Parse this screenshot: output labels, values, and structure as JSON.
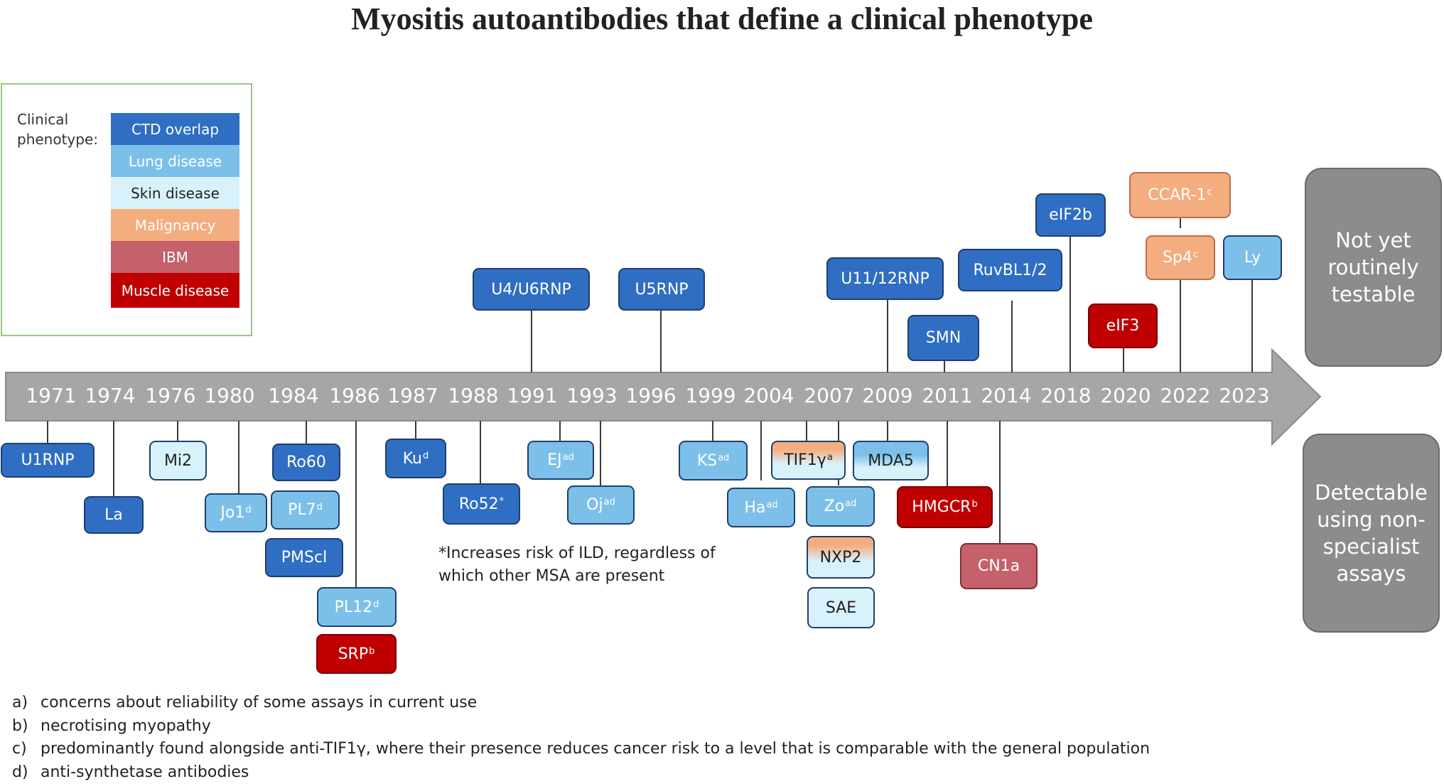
{
  "title": "Myositis autoantibodies that define a clinical phenotype",
  "legend": {
    "label": "Clinical phenotype:",
    "items": [
      {
        "label": "CTD overlap",
        "color": "#2f6ec3"
      },
      {
        "label": "Lung disease",
        "color": "#7cc0ea"
      },
      {
        "label": "Skin disease",
        "color": "#d8f2fb"
      },
      {
        "label": "Malignancy",
        "color": "#f4ad7e"
      },
      {
        "label": "IBM",
        "color": "#c4616b"
      },
      {
        "label": "Muscle disease",
        "color": "#c00000"
      }
    ]
  },
  "timeline": {
    "years": [
      "1971",
      "1974",
      "1976",
      "1980",
      "1984",
      "1986",
      "1987",
      "1988",
      "1991",
      "1993",
      "1996",
      "1999",
      "2004",
      "2007",
      "2009",
      "2011",
      "2014",
      "2018",
      "2020",
      "2022",
      "2023"
    ]
  },
  "antibodies": {
    "u1rnp": {
      "name": "U1RNP",
      "sup": "",
      "year": "1971",
      "phenotype": "CTD overlap"
    },
    "la": {
      "name": "La",
      "sup": "",
      "year": "1974",
      "phenotype": "CTD overlap"
    },
    "mi2": {
      "name": "Mi2",
      "sup": "",
      "year": "1976",
      "phenotype": "Skin disease"
    },
    "jo1": {
      "name": "Jo1",
      "sup": "d",
      "year": "1980",
      "phenotype": "Lung disease"
    },
    "ro60": {
      "name": "Ro60",
      "sup": "",
      "year": "1984",
      "phenotype": "CTD overlap"
    },
    "pl7": {
      "name": "PL7",
      "sup": "d",
      "year": "1984",
      "phenotype": "Lung disease"
    },
    "pmscl": {
      "name": "PMScl",
      "sup": "",
      "year": "1984",
      "phenotype": "CTD overlap"
    },
    "pl12": {
      "name": "PL12",
      "sup": "d",
      "year": "1986",
      "phenotype": "Lung disease"
    },
    "srp": {
      "name": "SRP",
      "sup": "b",
      "year": "1986",
      "phenotype": "Muscle disease"
    },
    "ku": {
      "name": "Ku",
      "sup": "d",
      "year": "1987",
      "phenotype": "CTD overlap"
    },
    "ro52": {
      "name": "Ro52",
      "sup": "*",
      "year": "1988",
      "phenotype": "CTD overlap"
    },
    "u4u6rnp": {
      "name": "U4/U6RNP",
      "sup": "",
      "year": "1991",
      "phenotype": "CTD overlap"
    },
    "ej": {
      "name": "EJ",
      "sup": "ad",
      "year": "1991",
      "phenotype": "Lung disease"
    },
    "oj": {
      "name": "Oj",
      "sup": "ad",
      "year": "1993",
      "phenotype": "Lung disease"
    },
    "u5rnp": {
      "name": "U5RNP",
      "sup": "",
      "year": "1996",
      "phenotype": "CTD overlap"
    },
    "ks": {
      "name": "KS",
      "sup": "ad",
      "year": "1999",
      "phenotype": "Lung disease"
    },
    "ha": {
      "name": "Ha",
      "sup": "ad",
      "year": "2004",
      "phenotype": "Lung disease"
    },
    "tif1y": {
      "name": "TIF1γ",
      "sup": "a",
      "year": "2007",
      "phenotype": "Malignancy / Skin disease"
    },
    "zo": {
      "name": "Zo",
      "sup": "ad",
      "year": "2007",
      "phenotype": "Lung disease"
    },
    "nxp2": {
      "name": "NXP2",
      "sup": "",
      "year": "2007",
      "phenotype": "Malignancy / Skin disease"
    },
    "sae": {
      "name": "SAE",
      "sup": "",
      "year": "2007",
      "phenotype": "Skin disease"
    },
    "u1112rnp": {
      "name": "U11/12RNP",
      "sup": "",
      "year": "2009",
      "phenotype": "CTD overlap"
    },
    "mda5": {
      "name": "MDA5",
      "sup": "",
      "year": "2009",
      "phenotype": "Lung disease / Skin disease"
    },
    "smn": {
      "name": "SMN",
      "sup": "",
      "year": "2011",
      "phenotype": "CTD overlap"
    },
    "hmgcr": {
      "name": "HMGCR",
      "sup": "b",
      "year": "2011",
      "phenotype": "Muscle disease"
    },
    "ruvbl12": {
      "name": "RuvBL1/2",
      "sup": "",
      "year": "2014",
      "phenotype": "CTD overlap"
    },
    "cn1a": {
      "name": "CN1a",
      "sup": "",
      "year": "2014",
      "phenotype": "IBM"
    },
    "eif2b": {
      "name": "eIF2b",
      "sup": "",
      "year": "2018",
      "phenotype": "CTD overlap"
    },
    "eif3": {
      "name": "eIF3",
      "sup": "",
      "year": "2020",
      "phenotype": "Muscle disease"
    },
    "ccar1": {
      "name": "CCAR-1",
      "sup": "c",
      "year": "2022",
      "phenotype": "Malignancy"
    },
    "sp4": {
      "name": "Sp4",
      "sup": "c",
      "year": "2022",
      "phenotype": "Malignancy"
    },
    "ly": {
      "name": "Ly",
      "sup": "",
      "year": "2023",
      "phenotype": "Lung disease"
    }
  },
  "side_boxes": {
    "top": "Not yet routinely testable",
    "bottom": "Detectable using non-specialist assays"
  },
  "note": {
    "line1": "*Increases risk of ILD, regardless of",
    "line2": "which other MSA are present"
  },
  "footnotes": [
    {
      "key": "a)",
      "text": "concerns about reliability of some assays in current use"
    },
    {
      "key": "b)",
      "text": "necrotising myopathy"
    },
    {
      "key": "c)",
      "text": "predominantly found alongside anti-TIF1γ, where their presence reduces cancer risk to a level that is comparable with the general population"
    },
    {
      "key": "d)",
      "text": "anti-synthetase antibodies"
    }
  ]
}
